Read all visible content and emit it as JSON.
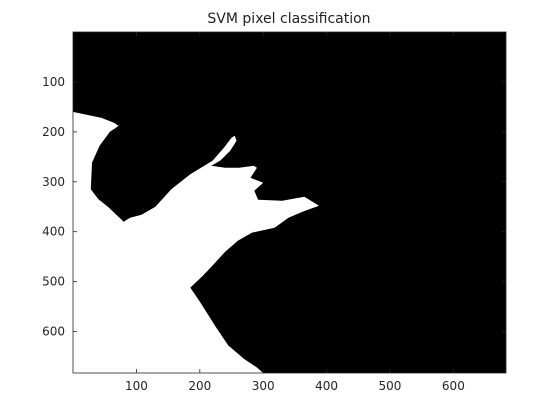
{
  "chart_data": {
    "type": "heatmap",
    "title": "SVM pixel classification",
    "xlabel": "",
    "ylabel": "",
    "xlim": [
      0,
      683
    ],
    "ylim": [
      683,
      0
    ],
    "y_reversed": true,
    "x_ticks": [
      100,
      200,
      300,
      400,
      500,
      600
    ],
    "y_ticks": [
      100,
      200,
      300,
      400,
      500,
      600
    ],
    "grid": false,
    "colormap": {
      "0": "#000000",
      "1": "#ffffff"
    },
    "classes": [
      {
        "value": 0,
        "color": "#000000"
      },
      {
        "value": 1,
        "color": "#ffffff"
      }
    ],
    "white_region_boundary": [
      [
        0,
        683
      ],
      [
        0,
        160
      ],
      [
        45,
        172
      ],
      [
        65,
        182
      ],
      [
        72,
        188
      ],
      [
        58,
        200
      ],
      [
        42,
        228
      ],
      [
        30,
        262
      ],
      [
        28,
        315
      ],
      [
        40,
        335
      ],
      [
        55,
        350
      ],
      [
        70,
        368
      ],
      [
        80,
        380
      ],
      [
        90,
        372
      ],
      [
        108,
        366
      ],
      [
        130,
        350
      ],
      [
        155,
        315
      ],
      [
        185,
        285
      ],
      [
        220,
        258
      ],
      [
        238,
        232
      ],
      [
        250,
        212
      ],
      [
        255,
        208
      ],
      [
        258,
        218
      ],
      [
        248,
        238
      ],
      [
        232,
        258
      ],
      [
        218,
        268
      ],
      [
        240,
        272
      ],
      [
        262,
        272
      ],
      [
        285,
        268
      ],
      [
        290,
        272
      ],
      [
        280,
        292
      ],
      [
        300,
        302
      ],
      [
        286,
        318
      ],
      [
        292,
        336
      ],
      [
        330,
        338
      ],
      [
        365,
        330
      ],
      [
        388,
        348
      ],
      [
        362,
        360
      ],
      [
        340,
        372
      ],
      [
        318,
        392
      ],
      [
        282,
        402
      ],
      [
        260,
        418
      ],
      [
        240,
        440
      ],
      [
        222,
        465
      ],
      [
        205,
        488
      ],
      [
        185,
        512
      ],
      [
        200,
        540
      ],
      [
        225,
        590
      ],
      [
        245,
        628
      ],
      [
        270,
        655
      ],
      [
        290,
        672
      ],
      [
        300,
        683
      ]
    ]
  }
}
